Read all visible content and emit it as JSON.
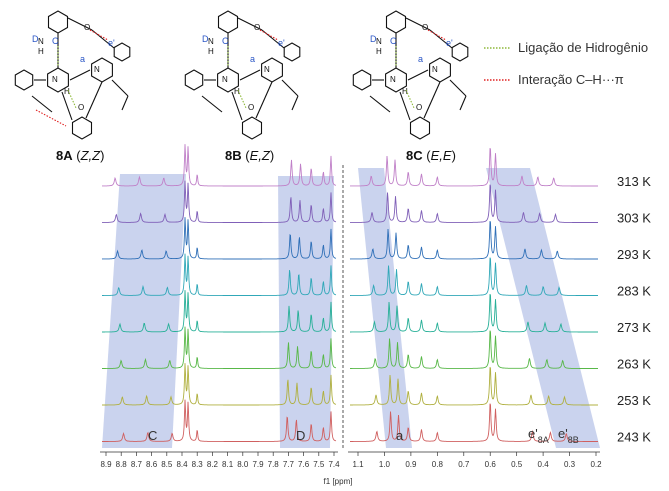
{
  "molecules": [
    {
      "id_label": "8A",
      "config": "Z,Z"
    },
    {
      "id_label": "8B",
      "config": "E,Z"
    },
    {
      "id_label": "8C",
      "config": "E,E"
    }
  ],
  "legend": [
    {
      "label": "Ligação de Hidrogênio",
      "color": "#8db83a",
      "style": "dotted"
    },
    {
      "label": "Interação C–H···π",
      "color": "#e02020",
      "style": "dotted"
    }
  ],
  "atom_labels": {
    "D": "D",
    "C": "C",
    "a": "a",
    "e": "e'",
    "N": "N",
    "H": "H",
    "O": "O"
  },
  "spectra": {
    "temperatures": [
      "313 K",
      "303 K",
      "293 K",
      "283 K",
      "273 K",
      "263 K",
      "253 K",
      "243 K"
    ],
    "colors": [
      "#c080c8",
      "#8060b8",
      "#3070b8",
      "#30a8b8",
      "#28b098",
      "#58b848",
      "#b0b040",
      "#d06060"
    ],
    "left_ticks": [
      "8.9",
      "8.8",
      "8.7",
      "8.6",
      "8.5",
      "8.4",
      "8.3",
      "8.2",
      "8.1",
      "8.0",
      "7.9",
      "7.8",
      "7.7",
      "7.6",
      "7.5",
      "7.4"
    ],
    "right_ticks": [
      "1.1",
      "1.0",
      "0.9",
      "0.8",
      "0.7",
      "0.6",
      "0.5",
      "0.4",
      "0.3",
      "0.2"
    ],
    "xlabel": "f1 [ppm]",
    "band_labels": {
      "C": "C",
      "D": "D",
      "a": "a",
      "e8A_main": "e'",
      "e8A_sub": "8A",
      "e8B_main": "e'",
      "e8B_sub": "8B"
    },
    "band_color": "#b8c4e8"
  }
}
